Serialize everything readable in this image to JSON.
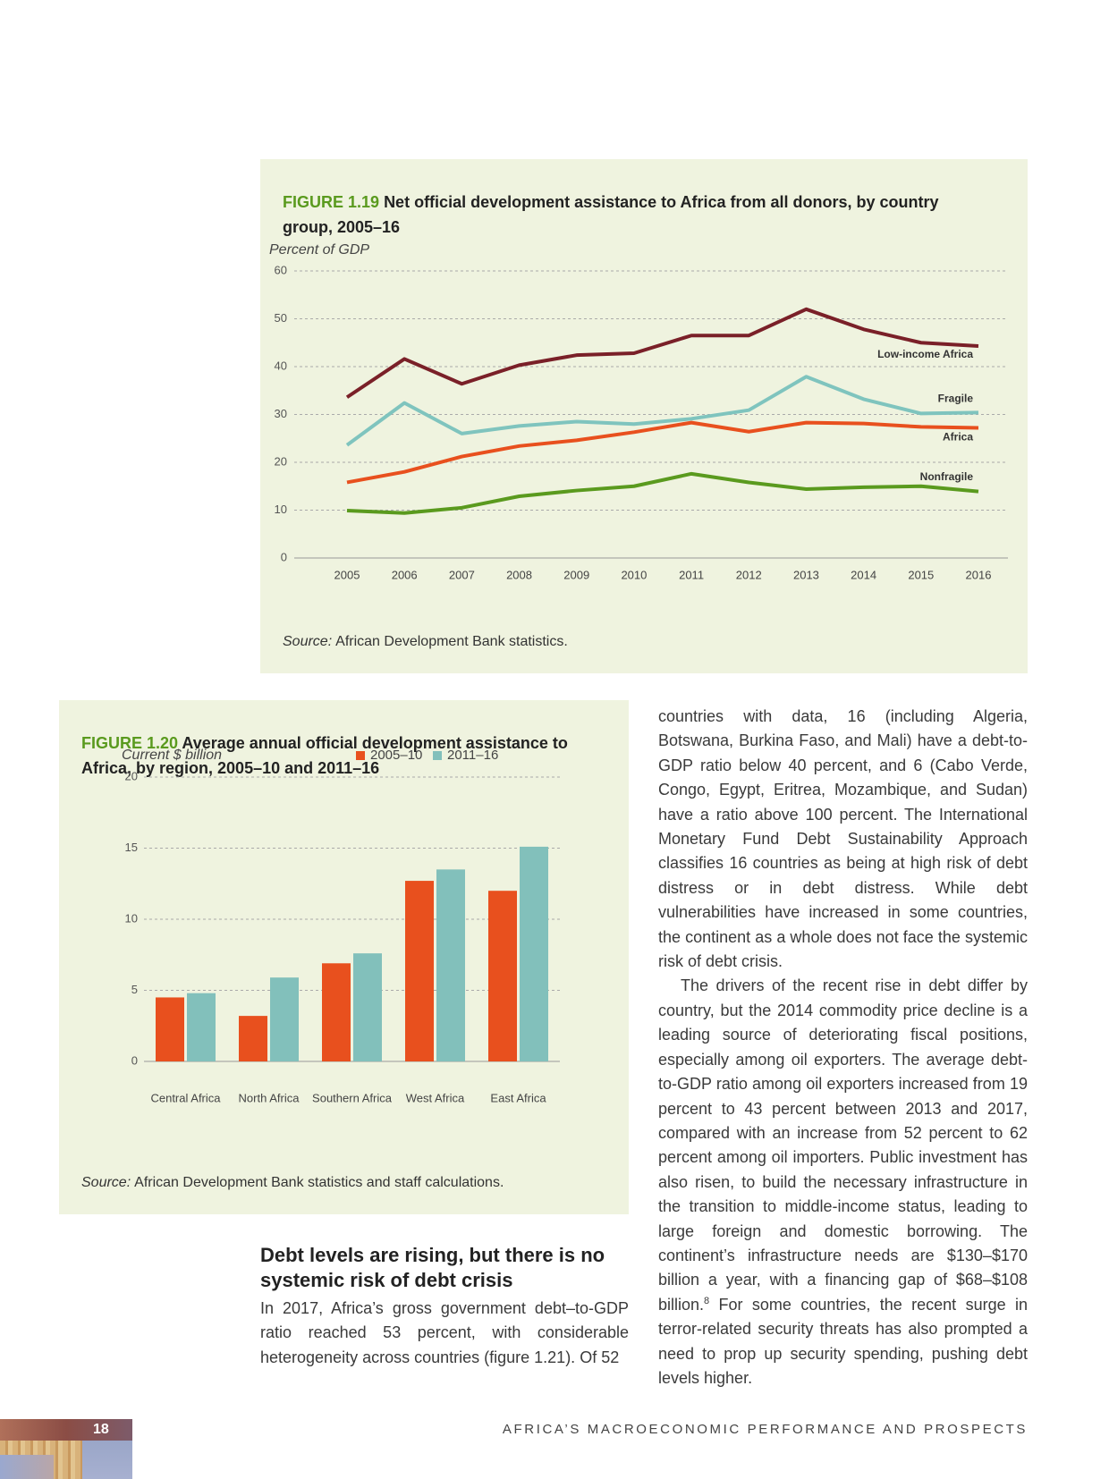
{
  "chart_data": [
    {
      "type": "line",
      "label": "FIGURE 1.19",
      "title": "Net official development assistance to Africa from all donors, by country group, 2005–16",
      "y_label": "Percent of GDP",
      "categories": [
        "2005",
        "2006",
        "2007",
        "2008",
        "2009",
        "2010",
        "2011",
        "2012",
        "2013",
        "2014",
        "2015",
        "2016"
      ],
      "series": [
        {
          "name": "Low-income Africa",
          "color": "#7a2028",
          "values": [
            33.6,
            41.6,
            36.4,
            40.3,
            42.4,
            42.8,
            46.5,
            46.5,
            52,
            47.8,
            45,
            44.3
          ]
        },
        {
          "name": "Fragile",
          "color": "#7fc4be",
          "values": [
            23.6,
            32.4,
            26,
            27.6,
            28.5,
            28,
            29.1,
            30.9,
            37.9,
            33.2,
            30.2,
            30.4
          ]
        },
        {
          "name": "Africa",
          "color": "#e8501e",
          "values": [
            15.8,
            18,
            21.2,
            23.4,
            24.6,
            26.3,
            28.3,
            26.4,
            28.3,
            28.1,
            27.4,
            27.2
          ]
        },
        {
          "name": "Nonfragile",
          "color": "#5a9a1e",
          "values": [
            9.9,
            9.4,
            10.5,
            12.9,
            14.1,
            15,
            17.6,
            15.8,
            14.4,
            14.8,
            15,
            13.9
          ]
        }
      ],
      "ylim": [
        0,
        60
      ],
      "yticks": [
        0,
        10,
        20,
        30,
        40,
        50,
        60
      ],
      "grid": true,
      "source_label": "Source:",
      "source": "African Development Bank statistics."
    },
    {
      "type": "bar",
      "label": "FIGURE 1.20",
      "title": "Average annual official development assistance to Africa, by region, 2005–10 and 2011–16",
      "y_label": "Current $ billion",
      "categories": [
        "Central Africa",
        "North Africa",
        "Southern Africa",
        "West Africa",
        "East Africa"
      ],
      "series": [
        {
          "name": "2005–10",
          "color": "#e8501e",
          "values": [
            4.5,
            3.2,
            6.9,
            12.7,
            12
          ]
        },
        {
          "name": "2011–16",
          "color": "#82c0bb",
          "values": [
            4.8,
            5.9,
            7.6,
            13.5,
            15.1
          ]
        }
      ],
      "ylim": [
        0,
        20
      ],
      "yticks": [
        0,
        5,
        10,
        15,
        20
      ],
      "grid": true,
      "legend": "top-right",
      "source_label": "Source:",
      "source": "African Development Bank statistics and staff calculations."
    }
  ],
  "section": {
    "heading": "Debt levels are rising, but there is no systemic risk of debt crisis",
    "paragraph": "In 2017, Africa’s gross government debt–to-GDP ratio reached 53 percent, with considerable heterogeneity across countries (figure 1.21). Of 52"
  },
  "column": {
    "paragraph_1": "countries with data, 16 (including Algeria, Botswana, Burkina Faso, and Mali) have a debt-to-GDP ratio below 40 percent, and 6 (Cabo Verde, Congo, Egypt, Eritrea, Mozambique, and Sudan) have a ratio above 100 percent. The International Monetary Fund Debt Sustainability Approach classifies 16 countries as being at high risk of debt distress or in debt distress. While debt vulnerabilities have increased in some countries, the continent as a whole does not face the systemic risk of debt crisis.",
    "paragraph_2": "The drivers of the recent rise in debt differ by country, but the 2014 commodity price decline is a leading source of deteriorating fiscal positions, especially among oil exporters. The average debt-to-GDP ratio among oil exporters increased from 19 percent to 43 percent between 2013 and 2017, compared with an increase from 52 percent to 62 percent among oil importers. Public investment has also risen, to build the necessary infrastructure in the transition to middle-income status, leading to large foreign and domestic borrowing. The continent’s infrastructure needs are $130–$170 billion a year, with a financing gap of $68–$108 billion.",
    "footnote_ref": "8",
    "paragraph_2_end": " For some countries, the recent surge in terror-related security threats has also prompted a need to prop up security spending, pushing debt levels higher."
  },
  "footer": {
    "page": "18",
    "running_title": "AFRICA’S MACROECONOMIC PERFORMANCE AND PROSPECTS"
  }
}
